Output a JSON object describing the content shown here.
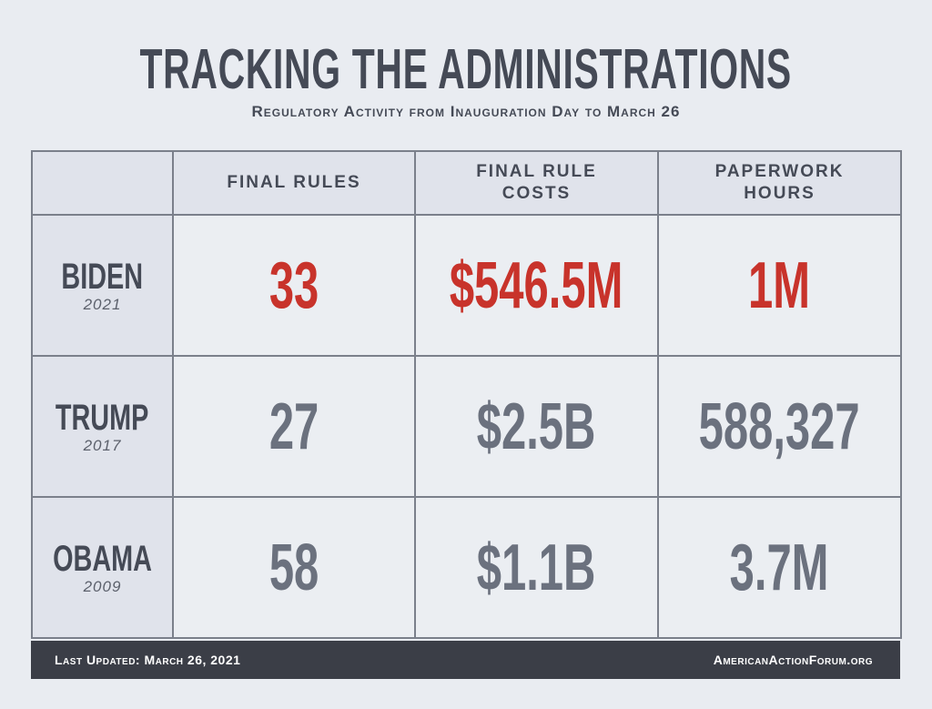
{
  "title": "TRACKING THE ADMINISTRATIONS",
  "subtitle": "Regulatory Activity from Inauguration Day to March 26",
  "colors": {
    "highlight": "#c8332b",
    "value": "#6b717e",
    "text": "#454a56",
    "footer_bg": "#3b3e47"
  },
  "chart_data": {
    "type": "table",
    "columns": [
      "FINAL RULES",
      "FINAL RULE COSTS",
      "PAPERWORK HOURS"
    ],
    "rows": [
      {
        "name": "BIDEN",
        "year": "2021",
        "values": [
          "33",
          "$546.5M",
          "1M"
        ],
        "highlight": true
      },
      {
        "name": "TRUMP",
        "year": "2017",
        "values": [
          "27",
          "$2.5B",
          "588,327"
        ],
        "highlight": false
      },
      {
        "name": "OBAMA",
        "year": "2009",
        "values": [
          "58",
          "$1.1B",
          "3.7M"
        ],
        "highlight": false
      }
    ]
  },
  "footer": {
    "updated": "Last Updated: March 26, 2021",
    "source": "AmericanActionForum.org"
  }
}
